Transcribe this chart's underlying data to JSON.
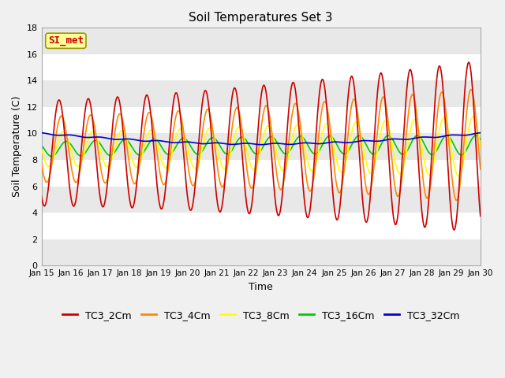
{
  "title": "Soil Temperatures Set 3",
  "xlabel": "Time",
  "ylabel": "Soil Temperature (C)",
  "xlim": [
    0,
    15
  ],
  "ylim": [
    0,
    18
  ],
  "yticks": [
    0,
    2,
    4,
    6,
    8,
    10,
    12,
    14,
    16,
    18
  ],
  "xtick_labels": [
    "Jan 15",
    "Jan 16",
    "Jan 17",
    "Jan 18",
    "Jan 19",
    "Jan 20",
    "Jan 21",
    "Jan 22",
    "Jan 23",
    "Jan 24",
    "Jan 25",
    "Jan 26",
    "Jan 27",
    "Jan 28",
    "Jan 29",
    "Jan 30"
  ],
  "legend_entries": [
    "TC3_2Cm",
    "TC3_4Cm",
    "TC3_8Cm",
    "TC3_16Cm",
    "TC3_32Cm"
  ],
  "line_colors": [
    "#cc0000",
    "#ff8800",
    "#ffff00",
    "#00cc00",
    "#0000cc"
  ],
  "annotation_text": "SI_met",
  "annotation_color": "#cc0000",
  "annotation_bg": "#ffff99",
  "annotation_edge": "#999900",
  "fig_bg": "#f0f0f0",
  "band_colors": [
    "#e8e8e8",
    "#ffffff"
  ],
  "title_fontsize": 11,
  "axis_label_fontsize": 9,
  "tick_fontsize": 8,
  "legend_fontsize": 9,
  "linewidth": 1.2
}
